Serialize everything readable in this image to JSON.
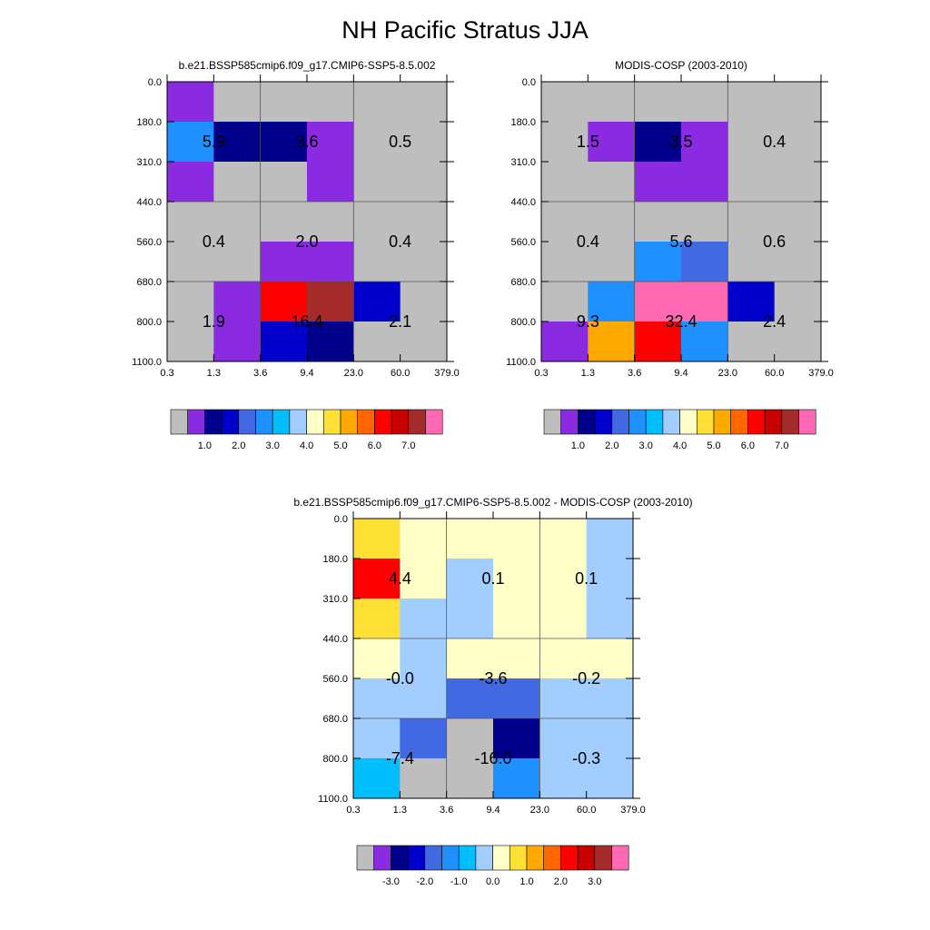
{
  "title": "NH Pacific Stratus JJA",
  "palette": [
    "#bebebe",
    "#8a2be2",
    "#00008b",
    "#0000cd",
    "#4169e1",
    "#1e90ff",
    "#00bfff",
    "#a2cdff",
    "#ffffc8",
    "#ffe135",
    "#ffaa00",
    "#ff6600",
    "#ff0000",
    "#c80000",
    "#a52a2a",
    "#ff69b4"
  ],
  "chart_data": [
    {
      "type": "heatmap",
      "title": "b.e21.BSSP585cmip6.f09_g17.CMIP6-SSP5-8.5.002",
      "x_tick_labels": [
        "0.3",
        "1.3",
        "3.6",
        "9.4",
        "23.0",
        "60.0",
        "379.0"
      ],
      "y_tick_labels": [
        "0.0",
        "180.0",
        "310.0",
        "440.0",
        "560.0",
        "680.0",
        "800.0",
        "1100.0"
      ],
      "cell_color_index": [
        [
          1,
          0,
          0,
          0,
          0,
          0
        ],
        [
          5,
          2,
          2,
          1,
          0,
          0
        ],
        [
          1,
          0,
          0,
          1,
          0,
          0
        ],
        [
          0,
          0,
          0,
          0,
          0,
          0
        ],
        [
          0,
          0,
          1,
          1,
          0,
          0
        ],
        [
          0,
          1,
          12,
          14,
          3,
          0
        ],
        [
          0,
          1,
          3,
          2,
          0,
          0
        ]
      ],
      "block_values": [
        {
          "label": "5.9",
          "x_block": 0,
          "y_block": 0
        },
        {
          "label": "3.6",
          "x_block": 1,
          "y_block": 0
        },
        {
          "label": "0.5",
          "x_block": 2,
          "y_block": 0
        },
        {
          "label": "0.4",
          "x_block": 0,
          "y_block": 1
        },
        {
          "label": "2.0",
          "x_block": 1,
          "y_block": 1
        },
        {
          "label": "0.4",
          "x_block": 2,
          "y_block": 1
        },
        {
          "label": "1.9",
          "x_block": 0,
          "y_block": 2
        },
        {
          "label": "16.4",
          "x_block": 1,
          "y_block": 2
        },
        {
          "label": "2.1",
          "x_block": 2,
          "y_block": 2
        }
      ],
      "colorbar_labels": [
        "1.0",
        "2.0",
        "3.0",
        "4.0",
        "5.0",
        "6.0",
        "7.0"
      ]
    },
    {
      "type": "heatmap",
      "title": "MODIS-COSP (2003-2010)",
      "x_tick_labels": [
        "0.3",
        "1.3",
        "3.6",
        "9.4",
        "23.0",
        "60.0",
        "379.0"
      ],
      "y_tick_labels": [
        "0.0",
        "180.0",
        "310.0",
        "440.0",
        "560.0",
        "680.0",
        "800.0",
        "1100.0"
      ],
      "cell_color_index": [
        [
          0,
          0,
          0,
          0,
          0,
          0
        ],
        [
          0,
          1,
          2,
          1,
          0,
          0
        ],
        [
          0,
          0,
          1,
          1,
          0,
          0
        ],
        [
          0,
          0,
          0,
          0,
          0,
          0
        ],
        [
          0,
          0,
          5,
          4,
          0,
          0
        ],
        [
          0,
          5,
          15,
          15,
          3,
          0
        ],
        [
          1,
          10,
          12,
          5,
          0,
          0
        ]
      ],
      "block_values": [
        {
          "label": "1.5",
          "x_block": 0,
          "y_block": 0
        },
        {
          "label": "3.5",
          "x_block": 1,
          "y_block": 0
        },
        {
          "label": "0.4",
          "x_block": 2,
          "y_block": 0
        },
        {
          "label": "0.4",
          "x_block": 0,
          "y_block": 1
        },
        {
          "label": "5.6",
          "x_block": 1,
          "y_block": 1
        },
        {
          "label": "0.6",
          "x_block": 2,
          "y_block": 1
        },
        {
          "label": "9.3",
          "x_block": 0,
          "y_block": 2
        },
        {
          "label": "32.4",
          "x_block": 1,
          "y_block": 2
        },
        {
          "label": "2.4",
          "x_block": 2,
          "y_block": 2
        }
      ],
      "colorbar_labels": [
        "1.0",
        "2.0",
        "3.0",
        "4.0",
        "5.0",
        "6.0",
        "7.0"
      ]
    },
    {
      "type": "heatmap",
      "title": "b.e21.BSSP585cmip6.f09_g17.CMIP6-SSP5-8.5.002 - MODIS-COSP (2003-2010)",
      "x_tick_labels": [
        "0.3",
        "1.3",
        "3.6",
        "9.4",
        "23.0",
        "60.0",
        "379.0"
      ],
      "y_tick_labels": [
        "0.0",
        "180.0",
        "310.0",
        "440.0",
        "560.0",
        "680.0",
        "800.0",
        "1100.0"
      ],
      "cell_color_index": [
        [
          9,
          8,
          8,
          8,
          8,
          7
        ],
        [
          12,
          8,
          7,
          8,
          8,
          7
        ],
        [
          9,
          7,
          7,
          8,
          8,
          7
        ],
        [
          8,
          7,
          8,
          8,
          8,
          8
        ],
        [
          7,
          7,
          4,
          4,
          7,
          7
        ],
        [
          7,
          4,
          0,
          2,
          7,
          7
        ],
        [
          6,
          0,
          0,
          5,
          7,
          7
        ]
      ],
      "block_values": [
        {
          "label": "4.4",
          "x_block": 0,
          "y_block": 0
        },
        {
          "label": "0.1",
          "x_block": 1,
          "y_block": 0
        },
        {
          "label": "0.1",
          "x_block": 2,
          "y_block": 0
        },
        {
          "label": "-0.0",
          "x_block": 0,
          "y_block": 1
        },
        {
          "label": "-3.6",
          "x_block": 1,
          "y_block": 1
        },
        {
          "label": "-0.2",
          "x_block": 2,
          "y_block": 1
        },
        {
          "label": "-7.4",
          "x_block": 0,
          "y_block": 2
        },
        {
          "label": "-16.0",
          "x_block": 1,
          "y_block": 2
        },
        {
          "label": "-0.3",
          "x_block": 2,
          "y_block": 2
        }
      ],
      "colorbar_labels": [
        "-3.0",
        "-2.0",
        "-1.0",
        "0.0",
        "1.0",
        "2.0",
        "3.0"
      ]
    }
  ]
}
